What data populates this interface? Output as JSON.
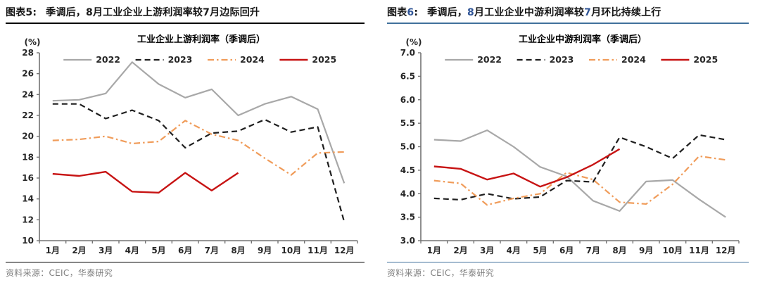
{
  "panels": [
    {
      "heading_prefix": "图表5:",
      "heading_text": "季调后，8月工业企业上游利润率较7月边际回升",
      "digit_color": "#1a1a1a",
      "rule_color": "#000000",
      "source": "资料来源：CEIC，华泰研究"
    },
    {
      "heading_prefix": "图表6:",
      "heading_text": "季调后，8月工业企业中游利润率较7月环比持续上行",
      "digit_color": "#2F5496",
      "rule_color": "#41719C",
      "source": "资料来源：CEIC，华泰研究"
    }
  ],
  "chart_data": [
    {
      "type": "line",
      "name": "upstream-profit-chart",
      "title": "工业企业上游利润率（季调后）",
      "unit_label": "(%)",
      "categories": [
        "1月",
        "2月",
        "3月",
        "4月",
        "5月",
        "6月",
        "7月",
        "8月",
        "9月",
        "10月",
        "11月",
        "12月"
      ],
      "ylim": [
        10,
        28
      ],
      "ytick_step": 2,
      "ytick_decimals": 0,
      "grid": false,
      "legend_position": "top",
      "series": [
        {
          "name": "2022",
          "color": "#A8A8A8",
          "style": "solid",
          "values": [
            23.4,
            23.5,
            24.1,
            27.1,
            25.0,
            23.7,
            24.5,
            22.0,
            23.1,
            23.8,
            22.6,
            15.5
          ]
        },
        {
          "name": "2023",
          "color": "#1F1F1F",
          "style": "dashed",
          "values": [
            23.1,
            23.1,
            21.7,
            22.5,
            21.5,
            18.9,
            20.3,
            20.5,
            21.6,
            20.4,
            20.9,
            11.8
          ]
        },
        {
          "name": "2024",
          "color": "#F09C5A",
          "style": "dashdot",
          "values": [
            19.6,
            19.7,
            20.0,
            19.3,
            19.5,
            21.5,
            20.2,
            19.6,
            17.9,
            16.3,
            18.4,
            18.5
          ]
        },
        {
          "name": "2025",
          "color": "#C71313",
          "style": "solid",
          "values": [
            16.4,
            16.2,
            16.6,
            14.7,
            14.6,
            16.5,
            14.8,
            16.5
          ]
        }
      ]
    },
    {
      "type": "line",
      "name": "midstream-profit-chart",
      "title": "工业企业中游利润率（季调后）",
      "unit_label": "(%)",
      "categories": [
        "1月",
        "2月",
        "3月",
        "4月",
        "5月",
        "6月",
        "7月",
        "8月",
        "9月",
        "10月",
        "11月",
        "12月"
      ],
      "ylim": [
        3.0,
        7.0
      ],
      "ytick_step": 0.5,
      "ytick_decimals": 1,
      "grid": false,
      "legend_position": "top",
      "series": [
        {
          "name": "2022",
          "color": "#A8A8A8",
          "style": "solid",
          "values": [
            5.15,
            5.12,
            5.35,
            5.0,
            4.57,
            4.37,
            3.85,
            3.63,
            4.26,
            4.29,
            3.88,
            3.5
          ]
        },
        {
          "name": "2023",
          "color": "#1F1F1F",
          "style": "dashed",
          "values": [
            3.9,
            3.87,
            4.0,
            3.89,
            3.93,
            4.28,
            4.25,
            5.2,
            5.0,
            4.75,
            5.25,
            5.15
          ]
        },
        {
          "name": "2024",
          "color": "#F09C5A",
          "style": "dashdot",
          "values": [
            4.28,
            4.22,
            3.76,
            3.9,
            4.0,
            4.45,
            4.3,
            3.82,
            3.78,
            4.2,
            4.8,
            4.72
          ]
        },
        {
          "name": "2025",
          "color": "#C71313",
          "style": "solid",
          "values": [
            4.58,
            4.53,
            4.3,
            4.43,
            4.15,
            4.35,
            4.62,
            4.95
          ]
        }
      ]
    }
  ]
}
